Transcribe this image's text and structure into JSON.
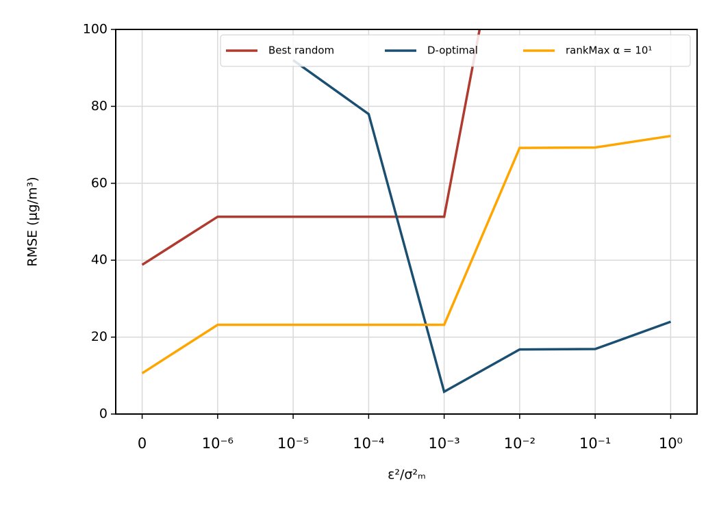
{
  "chart_data": {
    "type": "line",
    "xlabel": "ε²/σ²ₘ",
    "ylabel": "RMSE (μg/m³)",
    "categories": [
      "0",
      "10⁻⁶",
      "10⁻⁵",
      "10⁻⁴",
      "10⁻³",
      "10⁻²",
      "10⁻¹",
      "10⁰"
    ],
    "series": [
      {
        "name": "Best random",
        "color": "#b03a2e",
        "values": [
          38.8,
          51.3,
          51.3,
          51.3,
          51.3,
          155,
          null,
          null
        ]
      },
      {
        "name": "D-optimal",
        "color": "#1b4f72",
        "values": [
          null,
          null,
          92,
          78,
          5.8,
          16.8,
          16.9,
          24
        ]
      },
      {
        "name": "rankMax α = 10¹",
        "color": "#ffa500",
        "values": [
          10.6,
          23.2,
          23.2,
          23.2,
          23.2,
          69.2,
          69.3,
          72.3
        ]
      }
    ],
    "ylim": [
      0,
      100
    ],
    "yticks": [
      0,
      20,
      40,
      60,
      80,
      100
    ],
    "grid": true,
    "legend": "upper right"
  }
}
